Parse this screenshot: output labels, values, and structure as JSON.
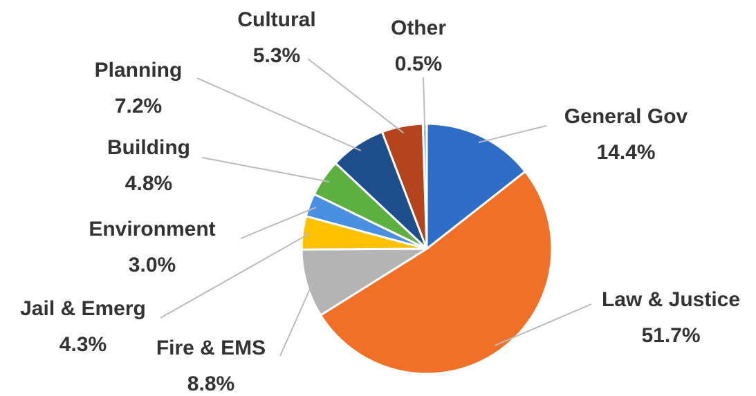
{
  "chart_data": {
    "type": "pie",
    "categories": [
      "General Gov",
      "Law & Justice",
      "Fire & EMS",
      "Jail & Emerg",
      "Environment",
      "Building",
      "Planning",
      "Cultural",
      "Other"
    ],
    "values": [
      14.4,
      51.7,
      8.8,
      4.3,
      3.0,
      4.8,
      7.2,
      5.3,
      0.5
    ],
    "value_labels": [
      "14.4%",
      "51.7%",
      "8.8%",
      "4.3%",
      "3.0%",
      "4.8%",
      "7.2%",
      "5.3%",
      "0.5%"
    ],
    "colors": [
      "#2f6ec8",
      "#f07027",
      "#b4b4b4",
      "#ffc000",
      "#4a90e2",
      "#5cb040",
      "#1f4e8c",
      "#b3441c",
      "#8faad0"
    ]
  }
}
